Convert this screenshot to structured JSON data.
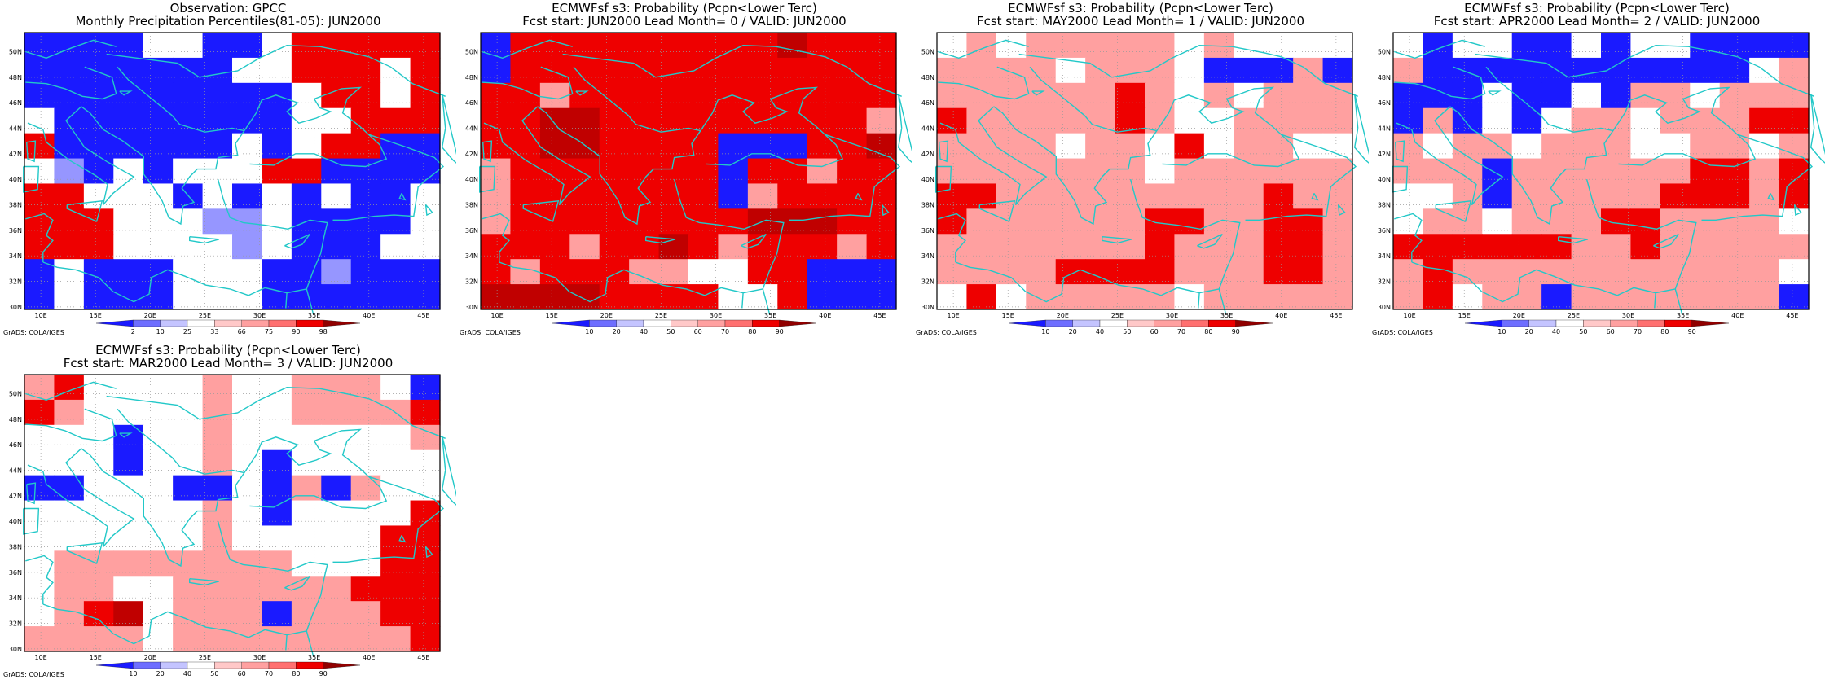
{
  "colors": {
    "blue_scale": [
      "#1a1aff",
      "#4646ff",
      "#6e6eff",
      "#9696ff",
      "#c4c4ff"
    ],
    "red_scale": [
      "#ffffff",
      "#ffc8c8",
      "#ffa0a0",
      "#ff7070",
      "#ff4040",
      "#ee0000",
      "#c00000",
      "#900000"
    ],
    "coast": "#22c8c8"
  },
  "map": {
    "lon_labels": [
      "10E",
      "15E",
      "20E",
      "25E",
      "30E",
      "35E",
      "40E",
      "45E"
    ],
    "lat_labels": [
      "30N",
      "32N",
      "34N",
      "36N",
      "38N",
      "40N",
      "42N",
      "44N",
      "46N",
      "48N",
      "50N"
    ],
    "credit": "GrADS: COLA/IGES"
  },
  "panels": [
    {
      "title1": "Observation: GPCC",
      "title2": "Monthly Precipitation Percentiles(81-05): JUN2000",
      "colorbar": [
        "2",
        "10",
        "25",
        "33",
        "66",
        "75",
        "90",
        "98"
      ],
      "grid": [
        "BBBB00BB0RRRRR",
        "BBBBBBB00RRR0R",
        "BBBBBBBBB0RR0R",
        "0BBBBBBBB00RRR",
        "RBBBBBB0B0RRBB",
        "0LB0B000RRBBBB",
        "RR000B0B0B0BB0",
        "RRR000LL0BBBB0",
        "RRR0000L0BBB00",
        "B0BBB000BBLBBB",
        "B0BBB000BBBBBB"
      ]
    },
    {
      "title1": "ECMWFsf s3: Probability (Pcpn<Lower Terc)",
      "title2": "Fcst start: JUN2000   Lead Month= 0 / VALID: JUN2000",
      "colorbar": [
        "10",
        "20",
        "40",
        "50",
        "60",
        "70",
        "80",
        "90"
      ],
      "grid": [
        "BRRRRRRRRRDRRR",
        "BRRRRRRRRRRRRR",
        "RRPRRRRRRRRRRR",
        "RRDDRRRRRRRRRP",
        "RRDDRRRRBBBRRD",
        "PRRRRRRRBRRPRR",
        "PRRRRRRRBPRRRR",
        "PRRRRRRRRDDDRR",
        "RRRPRRDRPRRRPR",
        "RPRRRPP00RRBBB",
        "DDDDRRRR00RBBB"
      ]
    },
    {
      "title1": "ECMWFsf s3: Probability (Pcpn<Lower Terc)",
      "title2": "Fcst start: MAY2000   Lead Month= 1 / VALID: JUN2000",
      "colorbar": [
        "10",
        "20",
        "40",
        "50",
        "60",
        "70",
        "80",
        "90"
      ],
      "grid": [
        "0P0PPPPP0P0000",
        "PPPP0PPP0BBBPB",
        "PPPPPPRP0P0PPP",
        "RPPPPPRP00PPPP",
        "PPPP0PP0R0PP00",
        "PPPPPPP0PPPPPP",
        "RRPPPPPPPPPRPP",
        "RPPPPPPRRPPRRP",
        "PPPPPPPRPPPRRP",
        "PPPPRRRRPPPRRP",
        "0R0PPPPP0PPPPP"
      ]
    },
    {
      "title1": "ECMWFsf s3: Probability (Pcpn<Lower Terc)",
      "title2": "Fcst start: APR2000   Lead Month= 2 / VALID: JUN2000",
      "colorbar": [
        "10",
        "20",
        "40",
        "50",
        "60",
        "70",
        "80",
        "90"
      ],
      "grid": [
        "0B00BB0B00BBBB",
        "PBBBBBBBBBBB0P",
        "BBB0BB0BPP0PPP",
        "BPB0B0PP0PPPRR",
        "P0PP0PPP00PP0P",
        "PPPBPPPPPPRRPR",
        "00PBPPPPPRRRPR",
        "0PP0PPPRRPPPP0",
        "RRRRRRPPRPPPPP",
        "PRPPPPPPPPPPP0",
        "PR0PPBPPPPPPPB"
      ]
    },
    {
      "title1": "ECMWFsf s3: Probability (Pcpn<Lower Terc)",
      "title2": "Fcst start: MAR2000   Lead Month= 3 / VALID: JUN2000",
      "colorbar": [
        "10",
        "20",
        "40",
        "50",
        "60",
        "70",
        "80",
        "90"
      ],
      "grid": [
        "PR0000P00PPP0B",
        "RP0000P00PPPPR",
        "000B00P000000P",
        "000B00P0B00000",
        "BB000BB0BPBP00",
        "000000P0B0000R",
        "000000P00000RR",
        "0PPPPPPPP000RR",
        "0PP00PPPPPPRRR",
        "0PRD0PPPBPPPRR",
        "PPPP0PPPPPPPPR"
      ]
    }
  ]
}
